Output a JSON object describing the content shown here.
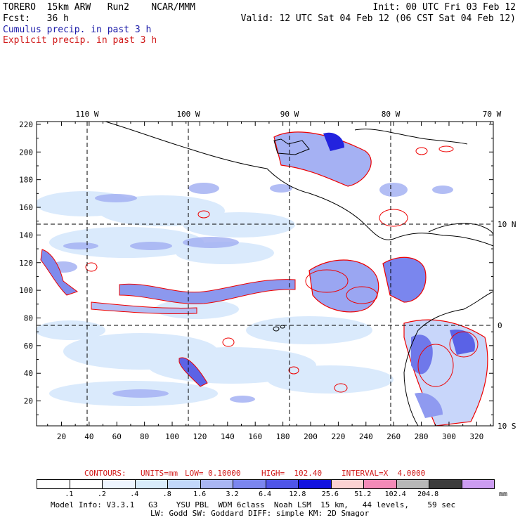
{
  "header": {
    "line1_left": "TORERO  15km ARW   Run2    NCAR/MMM",
    "line1_right": "Init: 00 UTC Fri 03 Feb 12",
    "line2_left": "Fcst:   36 h",
    "line2_right": "Valid: 12 UTC Sat 04 Feb 12 (06 CST Sat 04 Feb 12)",
    "line3": "Cumulus precip. in past 3 h",
    "line4": "Explicit precip. in past 3 h"
  },
  "map": {
    "top_lon_labels": [
      "110 W",
      "100 W",
      "90 W",
      "80 W",
      "70 W"
    ],
    "right_lat_labels": [
      "10 N",
      "0",
      "10 S"
    ],
    "y_tick_labels": [
      "20",
      "40",
      "60",
      "80",
      "100",
      "120",
      "140",
      "160",
      "180",
      "200",
      "220"
    ],
    "x_tick_labels": [
      "20",
      "40",
      "60",
      "80",
      "100",
      "120",
      "140",
      "160",
      "180",
      "200",
      "220",
      "240",
      "260",
      "280",
      "300",
      "320"
    ],
    "colors": {
      "cumulus_light": "#cfe4fb",
      "cumulus_mid": "#9aa7f0",
      "cumulus_dark": "#3d3de0",
      "explicit_contour": "#ff0000",
      "coastline": "#000000"
    }
  },
  "contours_line": {
    "title": "CONTOURS:",
    "units": "UNITS=mm",
    "low": "LOW= 0.10000",
    "high": "HIGH=  102.40",
    "interval": "INTERVAL=X  4.0000"
  },
  "colorbar": {
    "unit": "mm",
    "ticks": [
      ".1",
      ".2",
      ".4",
      ".8",
      "1.6",
      "3.2",
      "6.4",
      "12.8",
      "25.6",
      "51.2",
      "102.4",
      "204.8"
    ],
    "colors": [
      "#ffffff",
      "#ffffff",
      "#eef5ff",
      "#d9ecfb",
      "#c2d8fa",
      "#a9b6f3",
      "#7b86ef",
      "#4f55e8",
      "#1212e0",
      "#fcd2d2",
      "#f48ab8",
      "#b8b8b8",
      "#3c3c3c",
      "#cc9cf2"
    ]
  },
  "footer": {
    "line1": "Model Info: V3.3.1   G3    YSU PBL  WDM 6class  Noah LSM  15 km,   44 levels,    59 sec",
    "line2": "LW: Godd SW: Goddard DIFF: simple KM: 2D Smagor"
  }
}
